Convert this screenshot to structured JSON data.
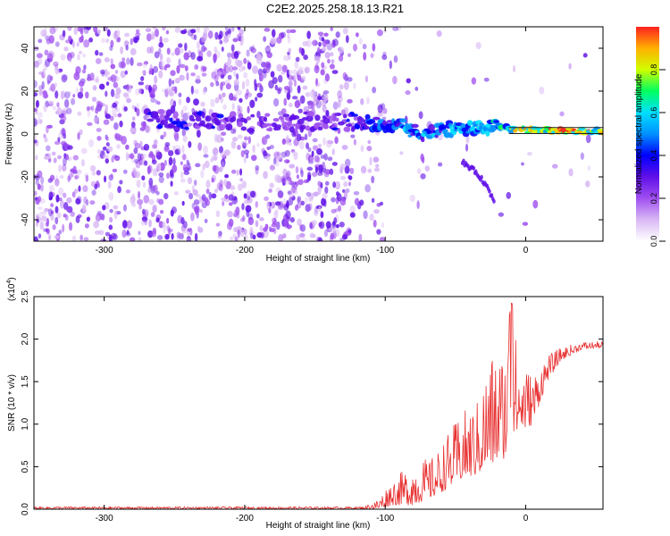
{
  "title": "C2E2.2025.258.18.13.R21",
  "chart_data": [
    {
      "type": "heatmap",
      "xlabel": "Height of straight line (km)",
      "ylabel": "Frequency (Hz)",
      "xlim": [
        -350,
        55
      ],
      "ylim": [
        -50,
        50
      ],
      "x_ticks": [
        -300,
        -200,
        -100,
        0
      ],
      "y_ticks": [
        -40,
        -20,
        0,
        20,
        40
      ],
      "colorbar": {
        "label": "Normalized spectral amplitude",
        "range": [
          0.0,
          1.0
        ],
        "ticks": [
          0.0,
          0.2,
          0.4,
          0.6,
          0.8
        ],
        "colors": [
          "#ffffff",
          "#d9b8f5",
          "#a050f0",
          "#6010e8",
          "#0000ff",
          "#0090ff",
          "#00e0ff",
          "#00ff60",
          "#d0ff00",
          "#ffb000",
          "#ff2020"
        ]
      },
      "signal_trace": [
        {
          "x": -270,
          "freq": 7,
          "amp": 0.35
        },
        {
          "x": -240,
          "freq": 6,
          "amp": 0.4
        },
        {
          "x": -200,
          "freq": 5,
          "amp": 0.3
        },
        {
          "x": -160,
          "freq": 6,
          "amp": 0.3
        },
        {
          "x": -125,
          "freq": 6,
          "amp": 0.35
        },
        {
          "x": -110,
          "freq": 5,
          "amp": 0.45
        },
        {
          "x": -90,
          "freq": 4,
          "amp": 0.5
        },
        {
          "x": -75,
          "freq": 0,
          "amp": 0.55
        },
        {
          "x": -60,
          "freq": 2,
          "amp": 0.55
        },
        {
          "x": -40,
          "freq": 3,
          "amp": 0.6
        },
        {
          "x": -20,
          "freq": 3,
          "amp": 0.65
        },
        {
          "x": -5,
          "freq": 2,
          "amp": 0.85
        },
        {
          "x": 20,
          "freq": 1.5,
          "amp": 0.95
        },
        {
          "x": 55,
          "freq": 1.5,
          "amp": 0.9
        }
      ],
      "secondary_trace": [
        {
          "x": -45,
          "freq": -13
        },
        {
          "x": -35,
          "freq": -18
        },
        {
          "x": -28,
          "freq": -24
        },
        {
          "x": -22,
          "freq": -32
        }
      ]
    },
    {
      "type": "line",
      "xlabel": "Height of straight line (km)",
      "ylabel": "SNR (10 * v/v)",
      "scale_label": "(x10",
      "scale_exponent": "4",
      "scale_close": ")",
      "xlim": [
        -350,
        55
      ],
      "ylim": [
        0,
        2.5
      ],
      "x_ticks": [
        -300,
        -200,
        -100,
        0
      ],
      "y_ticks": [
        0.0,
        0.5,
        1.0,
        1.5,
        2.0,
        2.5
      ],
      "y_tick_labels": [
        "0.0",
        "0.5",
        "1.0",
        "1.5",
        "2.0",
        "2.5"
      ],
      "color": "#e83030",
      "envelope": [
        {
          "x": -350,
          "base": 0.0,
          "max": 0.03
        },
        {
          "x": -115,
          "base": 0.0,
          "max": 0.03
        },
        {
          "x": -105,
          "base": 0.0,
          "max": 0.12
        },
        {
          "x": -95,
          "base": 0.05,
          "max": 0.35
        },
        {
          "x": -80,
          "base": 0.05,
          "max": 0.55
        },
        {
          "x": -65,
          "base": 0.15,
          "max": 0.62
        },
        {
          "x": -55,
          "base": 0.25,
          "max": 0.9
        },
        {
          "x": -45,
          "base": 0.35,
          "max": 1.15
        },
        {
          "x": -35,
          "base": 0.4,
          "max": 1.25
        },
        {
          "x": -25,
          "base": 0.5,
          "max": 1.85
        },
        {
          "x": -15,
          "base": 0.6,
          "max": 1.9
        },
        {
          "x": -10,
          "base": 0.8,
          "max": 2.45
        },
        {
          "x": -5,
          "base": 0.9,
          "max": 1.75
        },
        {
          "x": 5,
          "base": 1.0,
          "max": 1.6
        },
        {
          "x": 15,
          "base": 1.5,
          "max": 1.8
        },
        {
          "x": 25,
          "base": 1.75,
          "max": 1.9
        },
        {
          "x": 40,
          "base": 1.88,
          "max": 1.97
        },
        {
          "x": 55,
          "base": 1.9,
          "max": 1.97
        }
      ]
    }
  ]
}
